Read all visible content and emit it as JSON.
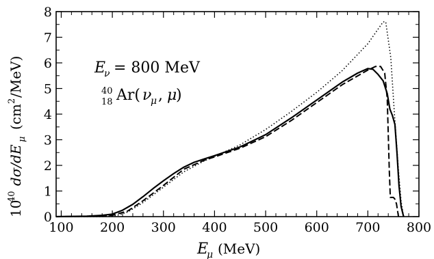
{
  "chart_data": {
    "type": "line",
    "title": "",
    "xlabel": "E_μ (MeV)",
    "ylabel": "10^40 dσ/dE_μ (cm^2/MeV)",
    "xlim": [
      90,
      800
    ],
    "ylim": [
      0,
      8
    ],
    "x_ticks": [
      100,
      200,
      300,
      400,
      500,
      600,
      700,
      800
    ],
    "y_ticks": [
      0,
      1,
      2,
      3,
      4,
      5,
      6,
      7,
      8
    ],
    "grid": false,
    "legend": "none",
    "annotations": [
      {
        "text": "E_ν = 800 MeV",
        "placement": "upper-left"
      },
      {
        "text": "40/18 Ar(ν_μ, μ)",
        "placement": "upper-left"
      }
    ],
    "series": [
      {
        "style": "solid",
        "points": [
          [
            90,
            0.0
          ],
          [
            150,
            0.02
          ],
          [
            180,
            0.05
          ],
          [
            200,
            0.1
          ],
          [
            220,
            0.25
          ],
          [
            240,
            0.48
          ],
          [
            260,
            0.78
          ],
          [
            280,
            1.1
          ],
          [
            300,
            1.4
          ],
          [
            320,
            1.68
          ],
          [
            340,
            1.93
          ],
          [
            360,
            2.12
          ],
          [
            380,
            2.25
          ],
          [
            400,
            2.38
          ],
          [
            450,
            2.72
          ],
          [
            500,
            3.2
          ],
          [
            550,
            3.85
          ],
          [
            600,
            4.55
          ],
          [
            650,
            5.25
          ],
          [
            680,
            5.6
          ],
          [
            700,
            5.78
          ],
          [
            710,
            5.75
          ],
          [
            720,
            5.55
          ],
          [
            730,
            5.3
          ],
          [
            738,
            4.8
          ],
          [
            743,
            4.2
          ],
          [
            748,
            3.95
          ],
          [
            753,
            3.6
          ],
          [
            757,
            2.5
          ],
          [
            761,
            1.2
          ],
          [
            765,
            0.4
          ],
          [
            770,
            0.0
          ]
        ]
      },
      {
        "style": "dashed",
        "points": [
          [
            90,
            0.0
          ],
          [
            150,
            0.01
          ],
          [
            200,
            0.05
          ],
          [
            230,
            0.22
          ],
          [
            260,
            0.62
          ],
          [
            300,
            1.22
          ],
          [
            340,
            1.85
          ],
          [
            380,
            2.2
          ],
          [
            400,
            2.33
          ],
          [
            450,
            2.67
          ],
          [
            500,
            3.12
          ],
          [
            550,
            3.75
          ],
          [
            600,
            4.45
          ],
          [
            650,
            5.15
          ],
          [
            700,
            5.72
          ],
          [
            715,
            5.86
          ],
          [
            725,
            5.86
          ],
          [
            733,
            5.6
          ],
          [
            738,
            4.6
          ],
          [
            742,
            1.8
          ],
          [
            744,
            0.75
          ],
          [
            750,
            0.75
          ],
          [
            753,
            0.68
          ],
          [
            756,
            0.5
          ],
          [
            760,
            0.0
          ]
        ]
      },
      {
        "style": "dotted",
        "points": [
          [
            90,
            0.0
          ],
          [
            180,
            0.0
          ],
          [
            210,
            0.05
          ],
          [
            230,
            0.18
          ],
          [
            260,
            0.55
          ],
          [
            300,
            1.15
          ],
          [
            340,
            1.75
          ],
          [
            380,
            2.18
          ],
          [
            400,
            2.35
          ],
          [
            450,
            2.8
          ],
          [
            500,
            3.4
          ],
          [
            550,
            4.1
          ],
          [
            600,
            4.85
          ],
          [
            650,
            5.7
          ],
          [
            700,
            6.75
          ],
          [
            730,
            7.6
          ],
          [
            735,
            7.6
          ],
          [
            745,
            6.2
          ],
          [
            752,
            4.0
          ],
          [
            760,
            1.8
          ],
          [
            765,
            0.6
          ],
          [
            770,
            0.0
          ]
        ]
      }
    ]
  }
}
